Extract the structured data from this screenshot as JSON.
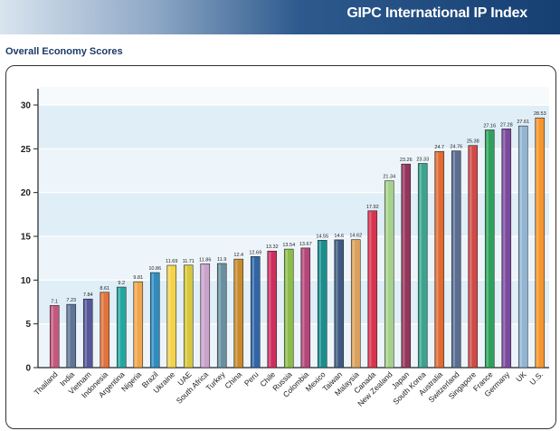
{
  "header": {
    "title": "GIPC International IP Index"
  },
  "section": {
    "title": "Overall Economy Scores"
  },
  "chart_data": {
    "type": "bar",
    "title": "",
    "xlabel": "",
    "ylabel": "",
    "ylim": [
      0,
      30
    ],
    "yticks": [
      0,
      5,
      10,
      15,
      20,
      25,
      30
    ],
    "grid": true,
    "categories": [
      "Thailand",
      "India",
      "Vietnam",
      "Indonesia",
      "Argentina",
      "Nigeria",
      "Brazil",
      "Ukraine",
      "UAE",
      "South Africa",
      "Turkey",
      "China",
      "Peru",
      "Chile",
      "Russia",
      "Colombia",
      "Mexico",
      "Taiwan",
      "Malaysia",
      "Canada",
      "New Zealand",
      "Japan",
      "South Korea",
      "Australia",
      "Switzerland",
      "Singapore",
      "France",
      "Germany",
      "UK",
      "U.S."
    ],
    "values": [
      7.1,
      7.23,
      7.84,
      8.61,
      9.2,
      9.81,
      10.86,
      11.69,
      11.71,
      11.86,
      11.9,
      12.4,
      12.69,
      13.32,
      13.54,
      13.67,
      14.55,
      14.6,
      14.62,
      17.92,
      21.34,
      23.26,
      23.33,
      24.7,
      24.76,
      25.38,
      27.16,
      27.28,
      27.61,
      28.53
    ],
    "value_labels": [
      "7.1",
      "7.23",
      "7.84",
      "8.61",
      "9.2",
      "9.81",
      "10.86",
      "11.69",
      "11.71",
      "11.86",
      "11.9",
      "12.4",
      "12.69",
      "13.32",
      "13.54",
      "13.67",
      "14.55",
      "14.6",
      "14.62",
      "17.92",
      "21.34",
      "23.26",
      "23.33",
      "24.7",
      "24.76",
      "25.38",
      "27.16",
      "27.28",
      "27.61",
      "28.53"
    ],
    "colors": [
      "#c4587e",
      "#5e7596",
      "#56569a",
      "#e2733a",
      "#23a7a1",
      "#f0a64c",
      "#2f8cc0",
      "#f3d34c",
      "#d6c73e",
      "#c9a3cc",
      "#6a90a0",
      "#c98a2c",
      "#3066a8",
      "#cc2e5e",
      "#8cbd4a",
      "#b4467a",
      "#1a8e8e",
      "#3e5a82",
      "#dba25e",
      "#d83450",
      "#a6d18c",
      "#93365c",
      "#3aa48e",
      "#df6b33",
      "#5a6e92",
      "#d04b48",
      "#2ea25c",
      "#7b4a9e",
      "#92b5d4",
      "#f5962e"
    ]
  }
}
